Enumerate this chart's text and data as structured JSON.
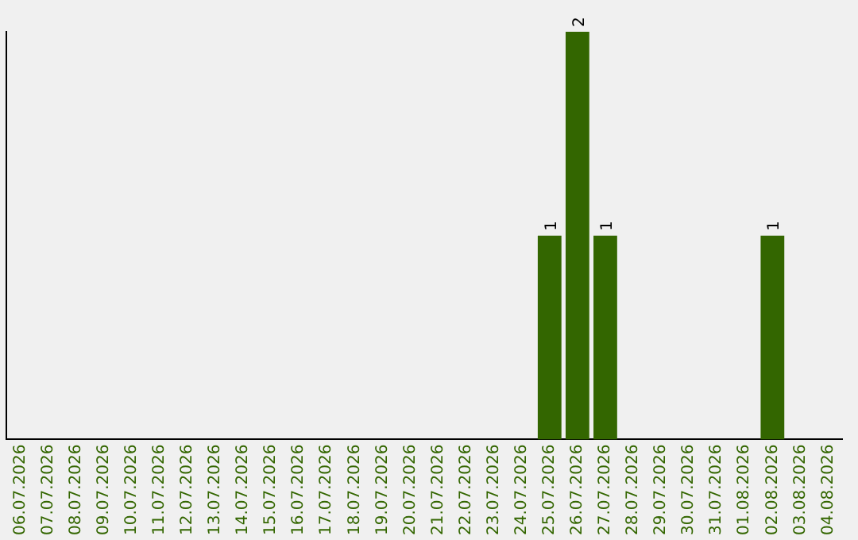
{
  "chart_data": {
    "type": "bar",
    "categories": [
      "06.07.2026",
      "07.07.2026",
      "08.07.2026",
      "09.07.2026",
      "10.07.2026",
      "11.07.2026",
      "12.07.2026",
      "13.07.2026",
      "14.07.2026",
      "15.07.2026",
      "16.07.2026",
      "17.07.2026",
      "18.07.2026",
      "19.07.2026",
      "20.07.2026",
      "21.07.2026",
      "22.07.2026",
      "23.07.2026",
      "24.07.2026",
      "25.07.2026",
      "26.07.2026",
      "27.07.2026",
      "28.07.2026",
      "29.07.2026",
      "30.07.2026",
      "31.07.2026",
      "01.08.2026",
      "02.08.2026",
      "03.08.2026",
      "04.08.2026"
    ],
    "values": [
      null,
      null,
      null,
      null,
      null,
      null,
      null,
      null,
      null,
      null,
      null,
      null,
      null,
      null,
      null,
      null,
      null,
      null,
      null,
      1,
      2,
      1,
      null,
      null,
      null,
      null,
      null,
      1,
      null,
      null
    ],
    "data_labels": true,
    "color": "#336600",
    "tick_labels": "x",
    "grid": false,
    "legend": false
  }
}
